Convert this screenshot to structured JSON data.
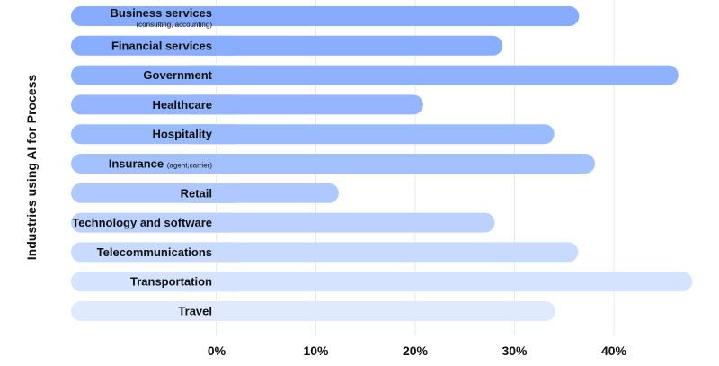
{
  "chart_data": {
    "type": "bar",
    "orientation": "horizontal",
    "title": "",
    "xlabel": "",
    "ylabel": "Industries using AI for Process",
    "xlim": [
      0,
      48
    ],
    "x_ticks": [
      "0%",
      "10%",
      "20%",
      "30%",
      "40%"
    ],
    "x_tick_values": [
      0,
      10,
      20,
      30,
      40
    ],
    "grid": true,
    "legend": "none",
    "categories": [
      {
        "label": "Business services",
        "sublabel": "(consulting, accounting)"
      },
      {
        "label": "Financial services",
        "sublabel": ""
      },
      {
        "label": "Government",
        "sublabel": ""
      },
      {
        "label": "Healthcare",
        "sublabel": ""
      },
      {
        "label": "Hospitality",
        "sublabel": ""
      },
      {
        "label": "Insurance",
        "sublabel": "(agent,carrier)"
      },
      {
        "label": "Retail",
        "sublabel": ""
      },
      {
        "label": "Technology and software",
        "sublabel": ""
      },
      {
        "label": "Telecommunications",
        "sublabel": ""
      },
      {
        "label": "Transportation",
        "sublabel": ""
      },
      {
        "label": "Travel",
        "sublabel": ""
      }
    ],
    "values": [
      36.5,
      28.8,
      46.5,
      20.8,
      34.0,
      38.1,
      12.3,
      28.0,
      36.4,
      47.9,
      34.1
    ],
    "colors": [
      "#86abff",
      "#8aaeff",
      "#8fb2ff",
      "#95b6ff",
      "#9bbbff",
      "#a4c1ff",
      "#afc8ff",
      "#bcd1ff",
      "#c9daff",
      "#d5e3ff",
      "#e0eaff"
    ]
  }
}
